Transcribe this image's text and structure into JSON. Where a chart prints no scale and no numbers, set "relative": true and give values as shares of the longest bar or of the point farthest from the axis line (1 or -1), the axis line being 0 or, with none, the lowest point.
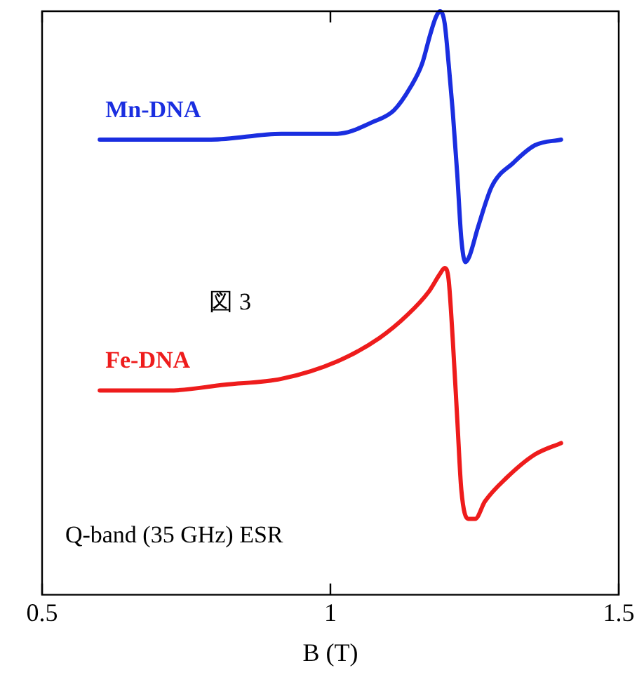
{
  "chart_data": {
    "type": "line",
    "xlabel": "B (T)",
    "xlim": [
      0.5,
      1.5
    ],
    "xticks": [
      0.5,
      1,
      1.5
    ],
    "relative": true,
    "grid": false,
    "legend": false,
    "marker": "none",
    "line_style": "solid",
    "annotations": [
      "図 3",
      "Q-band (35 GHz) ESR"
    ],
    "series": [
      {
        "name": "Mn-DNA",
        "color": "#1a2ee0",
        "x": [
          0.6,
          0.793,
          0.915,
          1.012,
          1.073,
          1.11,
          1.139,
          1.159,
          1.173,
          1.183,
          1.19,
          1.198,
          1.205,
          1.212,
          1.22,
          1.227,
          1.234,
          1.241,
          1.256,
          1.28,
          1.317,
          1.354,
          1.4
        ],
        "values": [
          0.78,
          0.78,
          0.79,
          0.79,
          0.81,
          0.83,
          0.87,
          0.91,
          0.96,
          0.99,
          1,
          0.98,
          0.91,
          0.83,
          0.72,
          0.61,
          0.57,
          0.58,
          0.63,
          0.7,
          0.74,
          0.77,
          0.78
        ]
      },
      {
        "name": "Fe-DNA",
        "color": "#ee1c1c",
        "x": [
          0.6,
          0.72,
          0.817,
          0.915,
          1.012,
          1.085,
          1.134,
          1.171,
          1.19,
          1.198,
          1.205,
          1.212,
          1.22,
          1.227,
          1.239,
          1.251,
          1.268,
          1.305,
          1.354,
          1.4
        ],
        "values": [
          0.35,
          0.35,
          0.36,
          0.37,
          0.4,
          0.44,
          0.48,
          0.52,
          0.55,
          0.56,
          0.54,
          0.44,
          0.3,
          0.18,
          0.13,
          0.13,
          0.16,
          0.2,
          0.24,
          0.26
        ]
      }
    ]
  }
}
